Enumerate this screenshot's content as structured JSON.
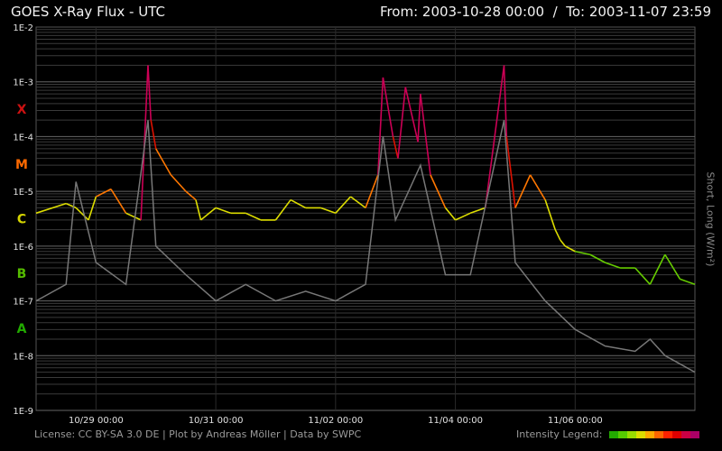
{
  "header": {
    "title": "GOES X-Ray Flux - UTC",
    "range": "From: 2003-10-28 00:00  /  To: 2003-11-07 23:59"
  },
  "footer": {
    "credits": "License: CC BY-SA 3.0 DE | Plot by Andreas Möller | Data by SWPC",
    "legend_label": "Intensity Legend:"
  },
  "legend_colors": [
    "#22aa00",
    "#55cc00",
    "#99dd00",
    "#dddd00",
    "#ffaa00",
    "#ff6600",
    "#ff2200",
    "#dd0000",
    "#cc0044",
    "#aa0066"
  ],
  "chart_data": {
    "type": "line",
    "title": "GOES X-Ray Flux - UTC",
    "ylabel": "Short, Long (W/m²)",
    "yscale": "log",
    "ylim": [
      1e-09,
      0.01
    ],
    "y_tick_labels": [
      "1E-2",
      "1E-3",
      "1E-4",
      "1E-5",
      "1E-6",
      "1E-7",
      "1E-8",
      "1E-9"
    ],
    "y_tick_values": [
      0.01,
      0.001,
      0.0001,
      1e-05,
      1e-06,
      1e-07,
      1e-08,
      1e-09
    ],
    "flare_classes": [
      {
        "label": "X",
        "value": 0.000316,
        "color": "#cc1111"
      },
      {
        "label": "M",
        "value": 3.16e-05,
        "color": "#ff6a00"
      },
      {
        "label": "C",
        "value": 3.16e-06,
        "color": "#d4d400"
      },
      {
        "label": "B",
        "value": 3.16e-07,
        "color": "#55bb00"
      },
      {
        "label": "A",
        "value": 3.16e-08,
        "color": "#22aa00"
      }
    ],
    "xlim": [
      "2003-10-28 00:00",
      "2003-11-07 23:59"
    ],
    "x_tick_labels": [
      "10/29 00:00",
      "10/31 00:00",
      "11/02 00:00",
      "11/04 00:00",
      "11/06 00:00"
    ],
    "x_tick_values": [
      "2003-10-29 00:00",
      "2003-10-31 00:00",
      "2003-11-02 00:00",
      "2003-11-04 00:00",
      "2003-11-06 00:00"
    ],
    "grid": true,
    "series": [
      {
        "name": "Long",
        "x": [
          "2003-10-28 00:00",
          "2003-10-28 12:00",
          "2003-10-28 16:00",
          "2003-10-28 21:00",
          "2003-10-29 00:00",
          "2003-10-29 06:00",
          "2003-10-29 12:00",
          "2003-10-29 18:00",
          "2003-10-29 20:50",
          "2003-10-29 22:00",
          "2003-10-30 00:00",
          "2003-10-30 06:00",
          "2003-10-30 12:00",
          "2003-10-30 16:00",
          "2003-10-30 18:00",
          "2003-10-31 00:00",
          "2003-10-31 06:00",
          "2003-10-31 12:00",
          "2003-10-31 18:00",
          "2003-11-01 00:00",
          "2003-11-01 06:00",
          "2003-11-01 12:00",
          "2003-11-01 18:00",
          "2003-11-02 00:00",
          "2003-11-02 06:00",
          "2003-11-02 12:00",
          "2003-11-02 17:00",
          "2003-11-02 19:00",
          "2003-11-02 23:00",
          "2003-11-03 01:00",
          "2003-11-03 04:00",
          "2003-11-03 09:00",
          "2003-11-03 10:00",
          "2003-11-03 14:00",
          "2003-11-03 20:00",
          "2003-11-04 00:00",
          "2003-11-04 06:00",
          "2003-11-04 12:00",
          "2003-11-04 19:30",
          "2003-11-04 20:30",
          "2003-11-05 00:00",
          "2003-11-05 06:00",
          "2003-11-05 12:00",
          "2003-11-05 16:00",
          "2003-11-05 18:00",
          "2003-11-05 20:00",
          "2003-11-06 00:00",
          "2003-11-06 06:00",
          "2003-11-06 12:00",
          "2003-11-06 18:00",
          "2003-11-07 00:00",
          "2003-11-07 06:00",
          "2003-11-07 12:00",
          "2003-11-07 18:00",
          "2003-11-07 23:59"
        ],
        "y": [
          4e-06,
          6e-06,
          5e-06,
          3e-06,
          8e-06,
          1.1e-05,
          4e-06,
          3e-06,
          0.002,
          0.0002,
          6e-05,
          2e-05,
          1e-05,
          7e-06,
          3e-06,
          5e-06,
          4e-06,
          4e-06,
          3e-06,
          3e-06,
          7e-06,
          5e-06,
          5e-06,
          4e-06,
          8e-06,
          5e-06,
          2e-05,
          0.0012,
          0.0001,
          4e-05,
          0.0008,
          8e-05,
          0.0006,
          2e-05,
          5e-06,
          3e-06,
          4e-06,
          5e-06,
          0.002,
          0.0001,
          5e-06,
          2e-05,
          7e-06,
          2e-06,
          1.3e-06,
          1e-06,
          8e-07,
          7e-07,
          5e-07,
          4e-07,
          4e-07,
          2e-07,
          7e-07,
          2.5e-07,
          2e-07
        ]
      },
      {
        "name": "Short",
        "x": [
          "2003-10-28 00:00",
          "2003-10-28 12:00",
          "2003-10-28 16:00",
          "2003-10-29 00:00",
          "2003-10-29 12:00",
          "2003-10-29 20:50",
          "2003-10-30 00:00",
          "2003-10-30 12:00",
          "2003-10-31 00:00",
          "2003-10-31 12:00",
          "2003-11-01 00:00",
          "2003-11-01 12:00",
          "2003-11-02 00:00",
          "2003-11-02 12:00",
          "2003-11-02 19:00",
          "2003-11-03 00:00",
          "2003-11-03 10:00",
          "2003-11-03 20:00",
          "2003-11-04 06:00",
          "2003-11-04 19:30",
          "2003-11-05 00:00",
          "2003-11-05 12:00",
          "2003-11-06 00:00",
          "2003-11-06 12:00",
          "2003-11-07 00:00",
          "2003-11-07 06:00",
          "2003-11-07 12:00",
          "2003-11-07 23:59"
        ],
        "y": [
          1e-07,
          2e-07,
          1.5e-05,
          5e-07,
          2e-07,
          0.0002,
          1e-06,
          3e-07,
          1e-07,
          2e-07,
          1e-07,
          1.5e-07,
          1e-07,
          2e-07,
          0.0001,
          3e-06,
          3e-05,
          3e-07,
          3e-07,
          0.0002,
          5e-07,
          1e-07,
          3e-08,
          1.5e-08,
          1.2e-08,
          2e-08,
          1e-08,
          5e-09
        ]
      }
    ]
  }
}
